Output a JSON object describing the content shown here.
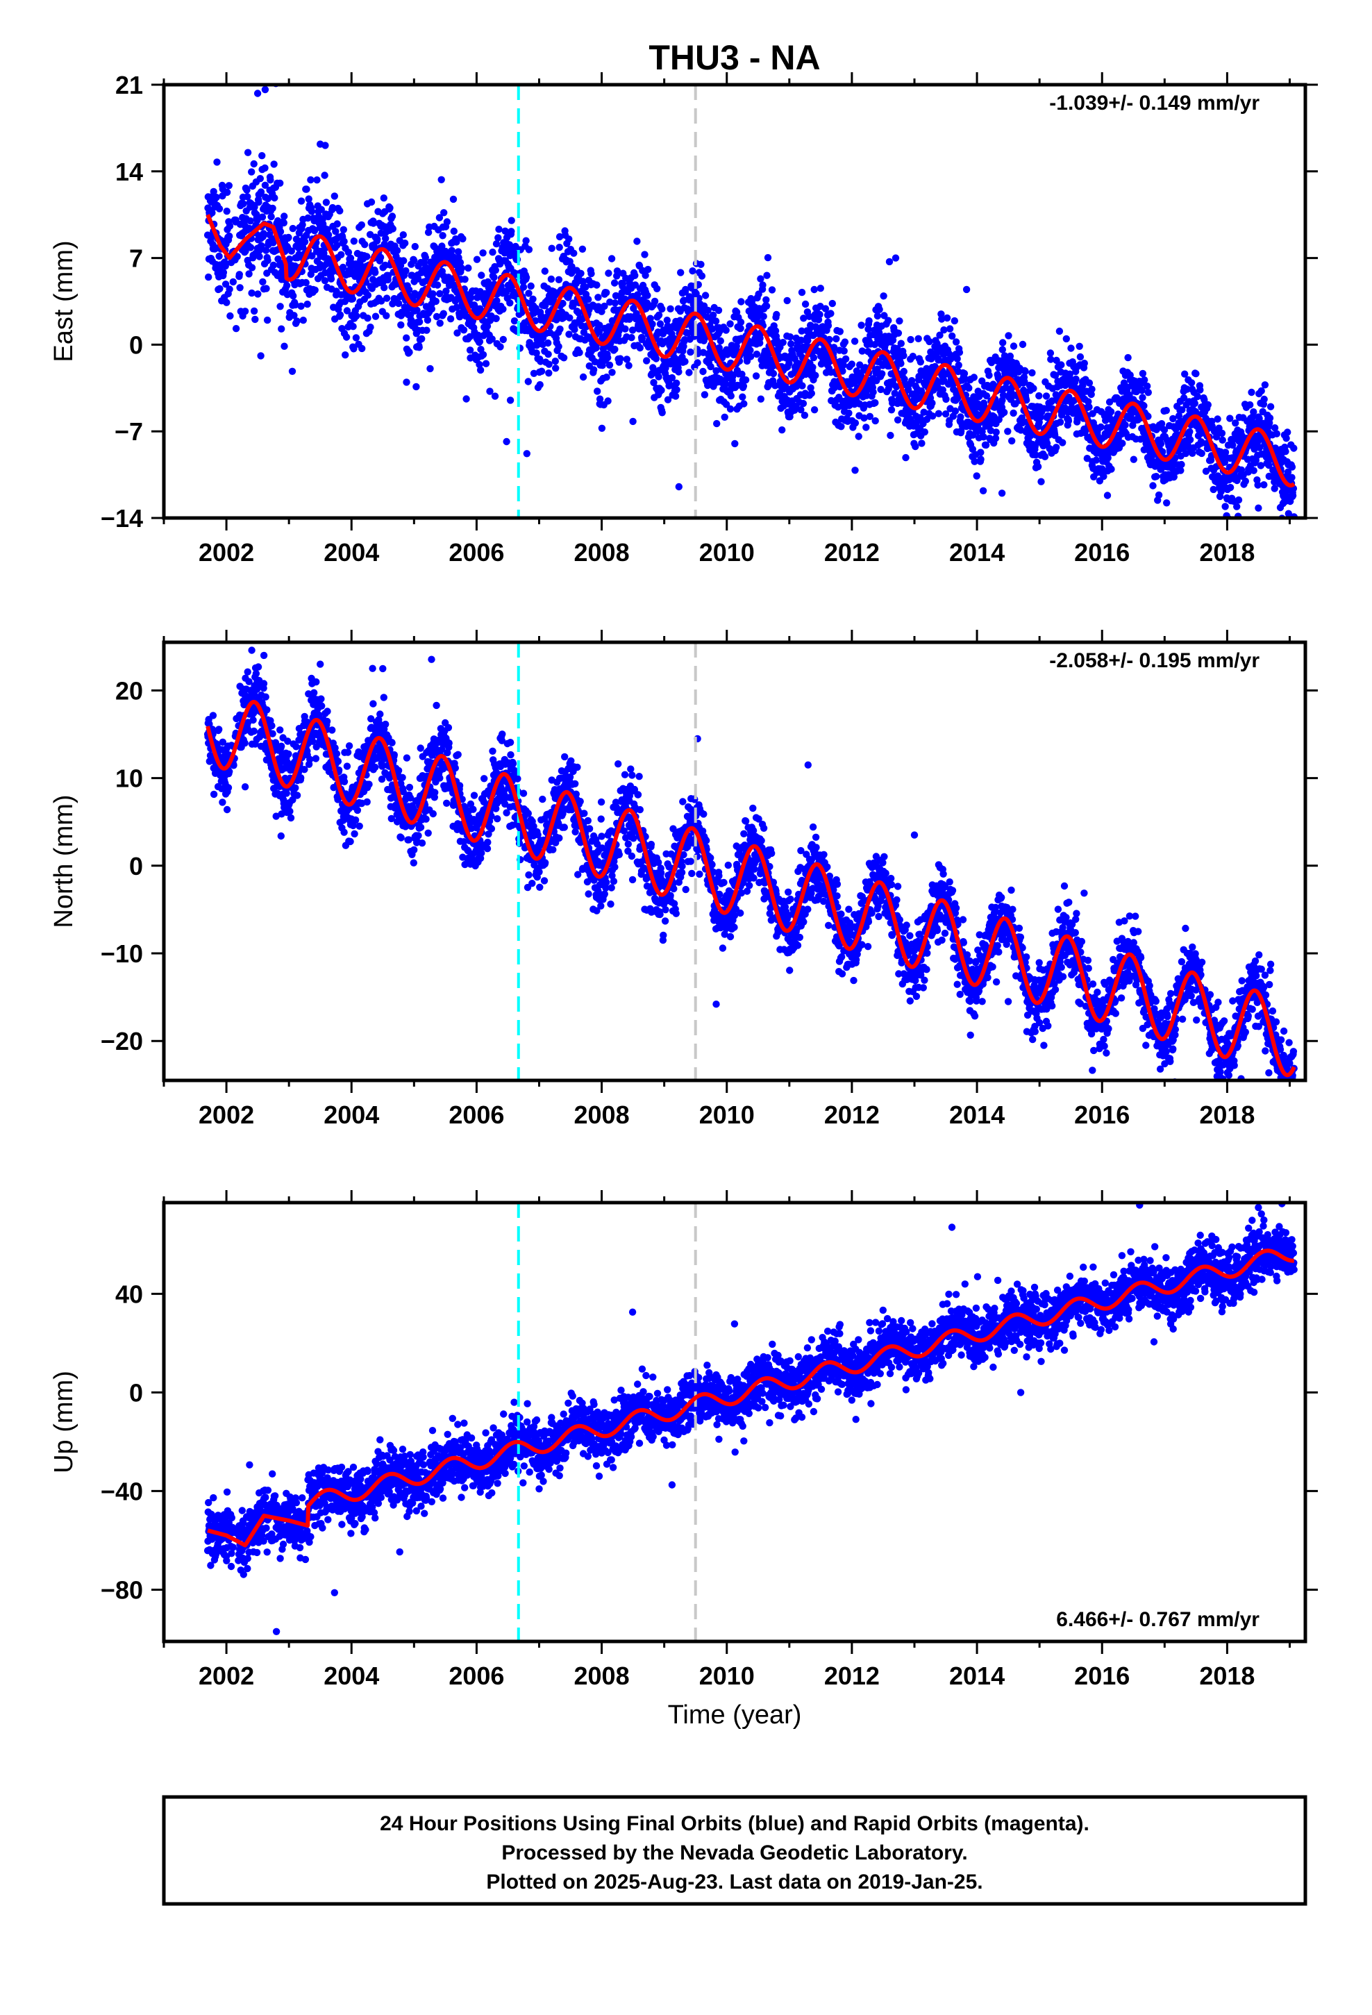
{
  "figure": {
    "title": "THU3 - NA",
    "xlabel": "Time (year)",
    "caption_lines": [
      "24 Hour Positions Using Final Orbits (blue) and Rapid Orbits (magenta).",
      "Processed by the Nevada Geodetic Laboratory.",
      "Plotted on 2025-Aug-23. Last data on 2019-Jan-25."
    ]
  },
  "colors": {
    "points": "#0000ff",
    "fit": "#ff0000",
    "vline_cyan": "#00ffff",
    "vline_gray": "#c8c8c8",
    "frame": "#000000"
  },
  "chart_data": [
    {
      "type": "scatter",
      "component": "east",
      "ylabel": "East (mm)",
      "rate_text": "-1.039+/- 0.149 mm/yr",
      "rate_position": "top-right",
      "xlim": [
        2001.0,
        2019.25
      ],
      "ylim": [
        -14,
        21
      ],
      "yticks": [
        -14,
        -7,
        0,
        7,
        14,
        21
      ],
      "xticks": [
        2002,
        2004,
        2006,
        2008,
        2010,
        2012,
        2014,
        2016,
        2018
      ],
      "xtick_labels": [
        "2002",
        "2004",
        "2006",
        "2008",
        "2010",
        "2012",
        "2014",
        "2016",
        "2018"
      ],
      "vlines": [
        {
          "x": 2006.67,
          "color": "cyan"
        },
        {
          "x": 2009.5,
          "color": "gray"
        }
      ],
      "data_start": 2001.7,
      "data_end": 2019.07,
      "fit": {
        "intercept_at_2002": 8.3,
        "rate_mm_yr": -1.039,
        "annual_amplitude": 2.0,
        "annual_phase_peak": 0.5,
        "extra_points": [
          [
            2001.7,
            10.5
          ],
          [
            2001.9,
            8.0
          ],
          [
            2002.05,
            7.0
          ],
          [
            2002.3,
            8.5
          ],
          [
            2002.6,
            9.8
          ],
          [
            2002.75,
            9.5
          ],
          [
            2002.95,
            6.5
          ]
        ]
      },
      "scatter_spread_early": 2.5,
      "scatter_spread_late": 1.6,
      "outliers": [
        [
          2002.5,
          20.3
        ],
        [
          2002.62,
          20.6
        ],
        [
          2003.5,
          16.2
        ],
        [
          2003.58,
          16.1
        ],
        [
          2002.3,
          2.7
        ],
        [
          2002.55,
          -0.9
        ],
        [
          2008.5,
          -6.2
        ],
        [
          2012.6,
          6.7
        ],
        [
          2012.7,
          7.0
        ],
        [
          2014.1,
          -11.8
        ],
        [
          2014.4,
          -12.0
        ],
        [
          2018.5,
          -13.2
        ]
      ]
    },
    {
      "type": "scatter",
      "component": "north",
      "ylabel": "North (mm)",
      "rate_text": "-2.058+/- 0.195 mm/yr",
      "rate_position": "top-right",
      "xlim": [
        2001.0,
        2019.25
      ],
      "ylim": [
        -24.5,
        25.5
      ],
      "yticks": [
        -20,
        -10,
        0,
        10,
        20
      ],
      "xticks": [
        2002,
        2004,
        2006,
        2008,
        2010,
        2012,
        2014,
        2016,
        2018
      ],
      "xtick_labels": [
        "2002",
        "2004",
        "2006",
        "2008",
        "2010",
        "2012",
        "2014",
        "2016",
        "2018"
      ],
      "vlines": [
        {
          "x": 2006.67,
          "color": "cyan"
        },
        {
          "x": 2009.5,
          "color": "gray"
        }
      ],
      "data_start": 2001.7,
      "data_end": 2019.07,
      "fit": {
        "intercept_at_2002": 15.3,
        "rate_mm_yr": -2.058,
        "annual_amplitude": 4.3,
        "annual_phase_peak": 0.45,
        "extra_points": []
      },
      "scatter_spread_early": 2.2,
      "scatter_spread_late": 1.8,
      "outliers": [
        [
          2002.6,
          24.0
        ],
        [
          2003.5,
          23.0
        ],
        [
          2004.5,
          22.5
        ],
        [
          2002.3,
          9.0
        ],
        [
          2011.3,
          11.5
        ],
        [
          2013.0,
          3.5
        ],
        [
          2014.5,
          -15.5
        ],
        [
          2015.2,
          -16.0
        ],
        [
          2016.7,
          -20.5
        ],
        [
          2018.1,
          -22.5
        ],
        [
          2019.0,
          -23.5
        ]
      ]
    },
    {
      "type": "scatter",
      "component": "up",
      "ylabel": "Up (mm)",
      "rate_text": "6.466+/- 0.767 mm/yr",
      "rate_position": "bottom-right",
      "xlim": [
        2001.0,
        2019.25
      ],
      "ylim": [
        -101,
        77
      ],
      "yticks": [
        -80,
        -40,
        0,
        40
      ],
      "xticks": [
        2002,
        2004,
        2006,
        2008,
        2010,
        2012,
        2014,
        2016,
        2018
      ],
      "xtick_labels": [
        "2002",
        "2004",
        "2006",
        "2008",
        "2010",
        "2012",
        "2014",
        "2016",
        "2018"
      ],
      "vlines": [
        {
          "x": 2006.67,
          "color": "cyan"
        },
        {
          "x": 2009.5,
          "color": "gray"
        }
      ],
      "data_start": 2001.7,
      "data_end": 2019.07,
      "fit": {
        "intercept_at_2002": -53.5,
        "rate_mm_yr": 6.466,
        "annual_amplitude": 3.5,
        "annual_phase_peak": 0.6,
        "extra_points": [
          [
            2001.7,
            -56.0
          ],
          [
            2002.0,
            -58.0
          ],
          [
            2002.3,
            -62.0
          ],
          [
            2002.6,
            -50.0
          ],
          [
            2003.0,
            -52.0
          ],
          [
            2003.3,
            -54.0
          ]
        ]
      },
      "scatter_spread_early": 6.0,
      "scatter_spread_late": 5.5,
      "outliers": [
        [
          2002.8,
          -97.0
        ],
        [
          2006.6,
          -4.0
        ],
        [
          2013.6,
          67.0
        ],
        [
          2016.6,
          76.0
        ],
        [
          2018.5,
          75.0
        ],
        [
          2012.3,
          25.0
        ],
        [
          2014.7,
          0.0
        ]
      ]
    }
  ]
}
